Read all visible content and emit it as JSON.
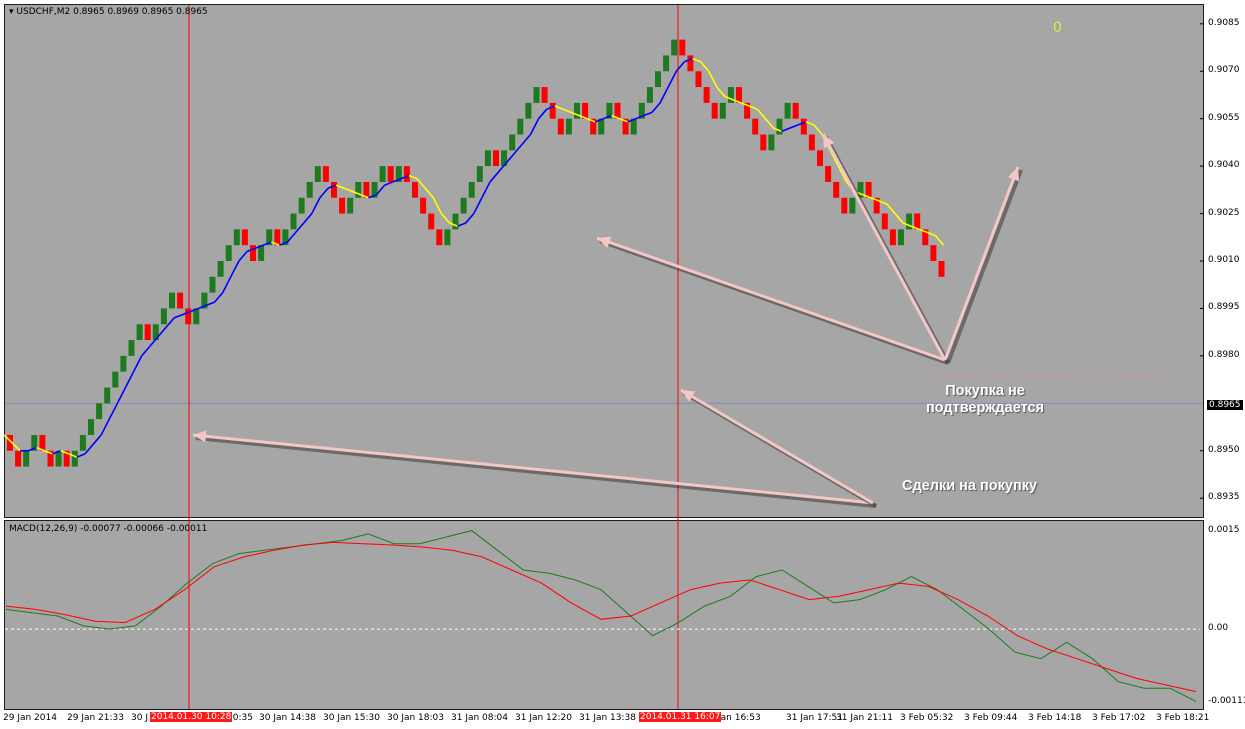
{
  "chart_data": [
    {
      "type": "candlestick",
      "title": "USDCHF,M2",
      "ohlc_text": "0.8965 0.8969 0.8965 0.8965",
      "y_ticks": [
        "0.9085",
        "0.9070",
        "0.9055",
        "0.9040",
        "0.9025",
        "0.9010",
        "0.8995",
        "0.8980",
        "0.8950",
        "0.8935"
      ],
      "ylim": [
        0.893,
        0.909
      ],
      "current_price": "0.8965",
      "corner_value": "0",
      "colors": {
        "up": "#1e7a1e",
        "down": "#ff0000",
        "ma_up": "#0000ff",
        "ma_down": "#ffff00",
        "bg": "#a6a6a6",
        "vline": "#ff0000",
        "hline": "#7f8fb8"
      },
      "close_path": [
        0.8955,
        0.895,
        0.8945,
        0.895,
        0.8955,
        0.895,
        0.8945,
        0.895,
        0.8945,
        0.895,
        0.8955,
        0.896,
        0.8965,
        0.897,
        0.8975,
        0.898,
        0.8985,
        0.899,
        0.8985,
        0.899,
        0.8995,
        0.9,
        0.8995,
        0.899,
        0.8995,
        0.9,
        0.9005,
        0.901,
        0.9015,
        0.902,
        0.9015,
        0.901,
        0.9015,
        0.902,
        0.9015,
        0.902,
        0.9025,
        0.903,
        0.9035,
        0.904,
        0.9035,
        0.903,
        0.9025,
        0.903,
        0.9035,
        0.903,
        0.9035,
        0.904,
        0.9035,
        0.904,
        0.9035,
        0.903,
        0.9025,
        0.902,
        0.9015,
        0.902,
        0.9025,
        0.903,
        0.9035,
        0.904,
        0.9045,
        0.904,
        0.9045,
        0.905,
        0.9055,
        0.906,
        0.9065,
        0.906,
        0.9055,
        0.905,
        0.9055,
        0.906,
        0.9055,
        0.905,
        0.9055,
        0.906,
        0.9055,
        0.905,
        0.9055,
        0.906,
        0.9065,
        0.907,
        0.9075,
        0.908,
        0.9075,
        0.907,
        0.9065,
        0.906,
        0.9055,
        0.906,
        0.9065,
        0.906,
        0.9055,
        0.905,
        0.9045,
        0.905,
        0.9055,
        0.906,
        0.9055,
        0.905,
        0.9045,
        0.904,
        0.9035,
        0.903,
        0.9025,
        0.903,
        0.9035,
        0.903,
        0.9025,
        0.902,
        0.9015,
        0.902,
        0.9025,
        0.902,
        0.9015,
        0.901,
        0.9005
      ],
      "x_labels": [
        "29 Jan 2014",
        "29 Jan 21:33",
        "30 J",
        "10:35",
        "30 Jan 14:38",
        "30 Jan 15:30",
        "30 Jan 18:03",
        "31 Jan 08:04",
        "31 Jan 12:20",
        "31 Jan 13:38",
        "Jan 16:53",
        "31 Jan 17:51",
        "31 Jan 21:11",
        "3 Feb 05:32",
        "3 Feb 09:44",
        "3 Feb 14:18",
        "3 Feb 17:02",
        "3 Feb 18:21"
      ],
      "x_highlight": [
        "2014.01.30 10:28",
        "2014.01.31 16:07"
      ]
    },
    {
      "type": "line",
      "title": "MACD(12,26,9) -0.00077 -0.00066 -0.00011",
      "y_ticks": [
        "0.0015",
        "0.00",
        "-0.00111"
      ],
      "ylim": [
        -0.0012,
        0.0016
      ],
      "series": [
        {
          "color": "#1e7a1e",
          "values": [
            0.0003,
            0.00025,
            0.0002,
            5e-05,
            0.0,
            5e-05,
            0.00035,
            0.0007,
            0.001,
            0.00115,
            0.0012,
            0.00125,
            0.0013,
            0.00135,
            0.00145,
            0.0013,
            0.0013,
            0.0014,
            0.0015,
            0.0012,
            0.0009,
            0.00085,
            0.00075,
            0.0006,
            0.00025,
            -0.0001,
            0.0001,
            0.00035,
            0.0005,
            0.0008,
            0.0009,
            0.00065,
            0.0004,
            0.00045,
            0.0006,
            0.0008,
            0.0006,
            0.0003,
            0.0,
            -0.00035,
            -0.00045,
            -0.0002,
            -0.00045,
            -0.0008,
            -0.0009,
            -0.0009,
            -0.0011
          ]
        },
        {
          "color": "#ff0000",
          "values": [
            0.00035,
            0.0003,
            0.00022,
            0.00012,
            0.0001,
            0.0003,
            0.0006,
            0.00095,
            0.0011,
            0.0012,
            0.00128,
            0.00132,
            0.0013,
            0.00128,
            0.00125,
            0.0012,
            0.0011,
            0.0009,
            0.0007,
            0.0004,
            0.00015,
            0.0002,
            0.0004,
            0.0006,
            0.0007,
            0.00075,
            0.0006,
            0.00045,
            0.0005,
            0.0006,
            0.0007,
            0.00065,
            0.00045,
            0.0002,
            -0.0001,
            -0.0003,
            -0.00045,
            -0.0006,
            -0.00075,
            -0.00085,
            -0.00095
          ]
        }
      ]
    }
  ],
  "annotations": {
    "buy_not_confirmed": "Покупка не подтверждается",
    "buy_trades": "Сделки на покупку",
    "watermark": "Портал для трейдеров – ForTrader.ru"
  }
}
